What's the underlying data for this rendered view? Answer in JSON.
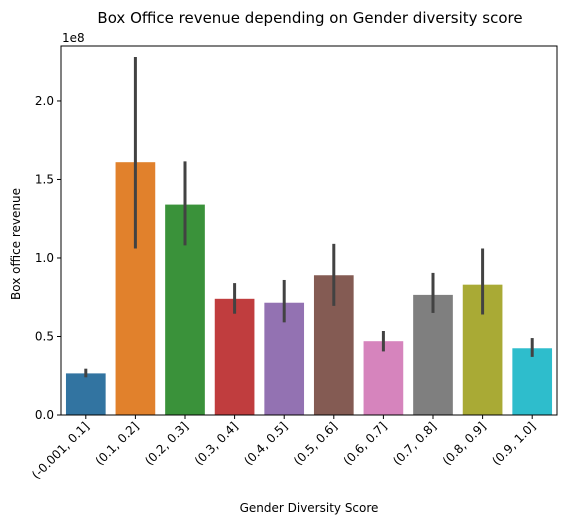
{
  "chart_data": {
    "type": "bar",
    "title": "Box Office revenue depending on Gender diversity score",
    "xlabel": "Gender Diversity Score",
    "ylabel": "Box office revenue",
    "y_multiplier_label": "1e8",
    "ylim": [
      0,
      2.35
    ],
    "y_ticks": [
      0.0,
      0.5,
      1.0,
      1.5,
      2.0
    ],
    "y_tick_labels": [
      "0.0",
      "0.5",
      "1.0",
      "1.5",
      "2.0"
    ],
    "categories": [
      "(-0.001, 0.1]",
      "(0.1, 0.2]",
      "(0.2, 0.3]",
      "(0.3, 0.4]",
      "(0.4, 0.5]",
      "(0.5, 0.6]",
      "(0.6, 0.7]",
      "(0.7, 0.8]",
      "(0.8, 0.9]",
      "(0.9, 1.0]"
    ],
    "values": [
      0.265,
      1.61,
      1.34,
      0.74,
      0.715,
      0.89,
      0.47,
      0.765,
      0.83,
      0.425
    ],
    "error_low": [
      0.24,
      1.06,
      1.08,
      0.645,
      0.59,
      0.695,
      0.405,
      0.65,
      0.64,
      0.37
    ],
    "error_high": [
      0.295,
      2.28,
      1.615,
      0.84,
      0.86,
      1.09,
      0.535,
      0.905,
      1.06,
      0.49
    ],
    "colors": [
      "#3274a1",
      "#e1812c",
      "#3a923a",
      "#c03d3e",
      "#9372b2",
      "#845b53",
      "#d684bd",
      "#7f7f7f",
      "#a9aa35",
      "#2ebdcc"
    ],
    "error_color": "#424242",
    "grid": false,
    "legend": "none"
  }
}
